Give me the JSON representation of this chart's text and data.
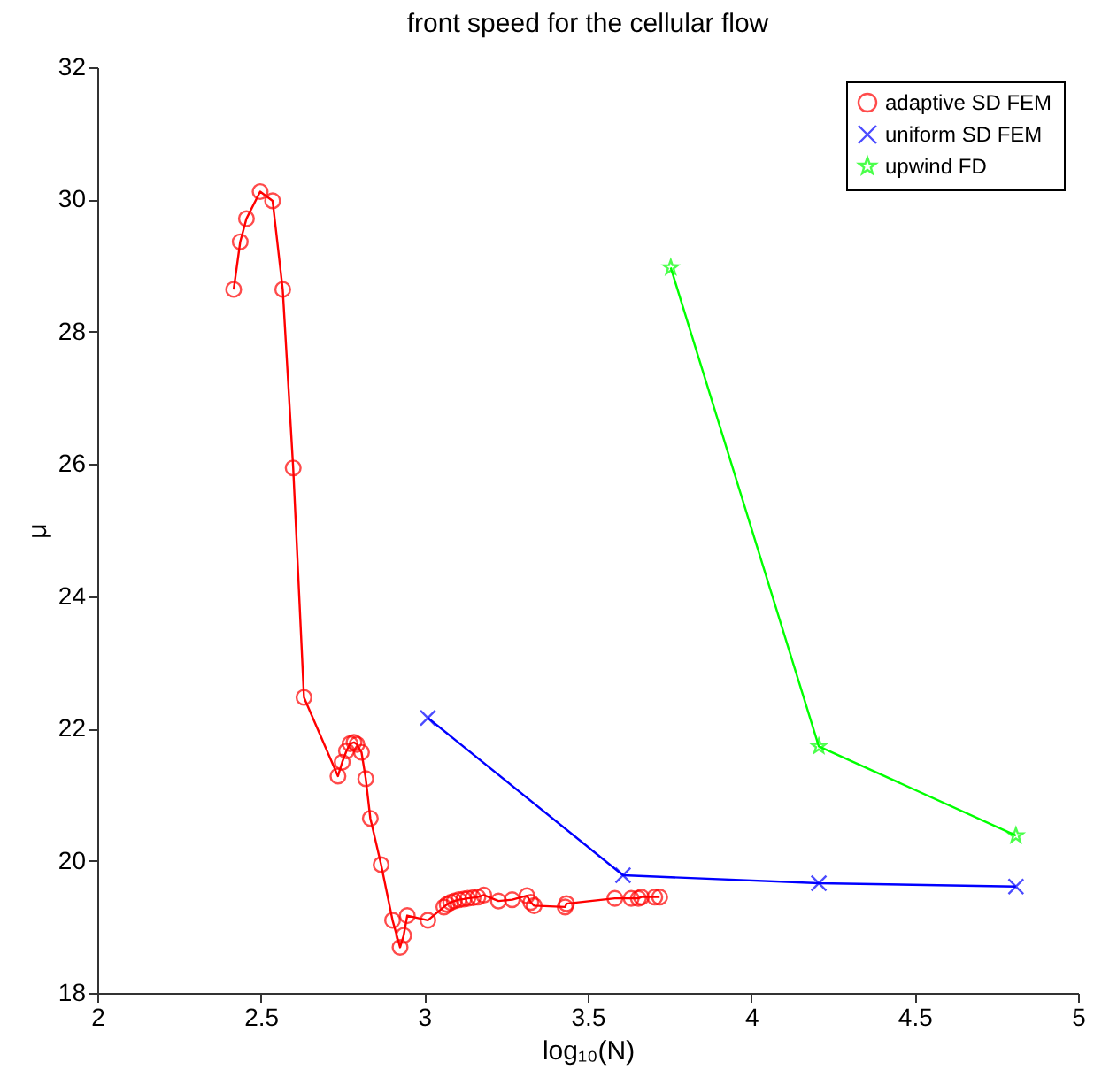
{
  "chart_data": {
    "type": "line",
    "title": "front speed for the cellular flow",
    "xlabel": "log₁₀(N)",
    "ylabel": "μ",
    "xlim": [
      2,
      5
    ],
    "xticks": [
      2,
      2.5,
      3,
      3.5,
      4,
      4.5,
      5
    ],
    "ylim": [
      18,
      32
    ],
    "yticks": [
      18,
      20,
      22,
      24,
      26,
      28,
      30,
      32
    ],
    "grid": false,
    "legend": "top right",
    "line_style": "solid",
    "series": [
      {
        "name": "adaptive SD FEM",
        "color": "#ff0000",
        "marker": "circle",
        "x": [
          2.417,
          2.437,
          2.456,
          2.498,
          2.536,
          2.567,
          2.599,
          2.632,
          2.736,
          2.749,
          2.762,
          2.773,
          2.785,
          2.794,
          2.808,
          2.821,
          2.835,
          2.868,
          2.903,
          2.926,
          2.937,
          2.948,
          3.011,
          3.06,
          3.07,
          3.081,
          3.092,
          3.106,
          3.121,
          3.133,
          3.149,
          3.164,
          3.182,
          3.227,
          3.269,
          3.314,
          3.326,
          3.336,
          3.431,
          3.435,
          3.583,
          3.633,
          3.655,
          3.664,
          3.705,
          3.72
        ],
        "values": [
          28.64,
          29.36,
          29.71,
          30.12,
          29.98,
          28.64,
          25.94,
          22.47,
          21.28,
          21.49,
          21.66,
          21.77,
          21.79,
          21.76,
          21.64,
          21.24,
          20.64,
          19.94,
          19.1,
          18.69,
          18.87,
          19.17,
          19.1,
          19.3,
          19.34,
          19.37,
          19.39,
          19.41,
          19.42,
          19.43,
          19.44,
          19.45,
          19.48,
          19.39,
          19.41,
          19.47,
          19.37,
          19.32,
          19.3,
          19.35,
          19.43,
          19.43,
          19.43,
          19.45,
          19.45,
          19.45
        ]
      },
      {
        "name": "uniform SD FEM",
        "color": "#0000ff",
        "marker": "cross",
        "x": [
          3.011,
          3.608,
          4.207,
          4.81
        ],
        "values": [
          22.16,
          19.78,
          19.66,
          19.61
        ]
      },
      {
        "name": "upwind FD",
        "color": "#00ff00",
        "marker": "star",
        "x": [
          3.754,
          4.207,
          4.81
        ],
        "values": [
          28.97,
          21.73,
          20.38
        ]
      }
    ]
  }
}
